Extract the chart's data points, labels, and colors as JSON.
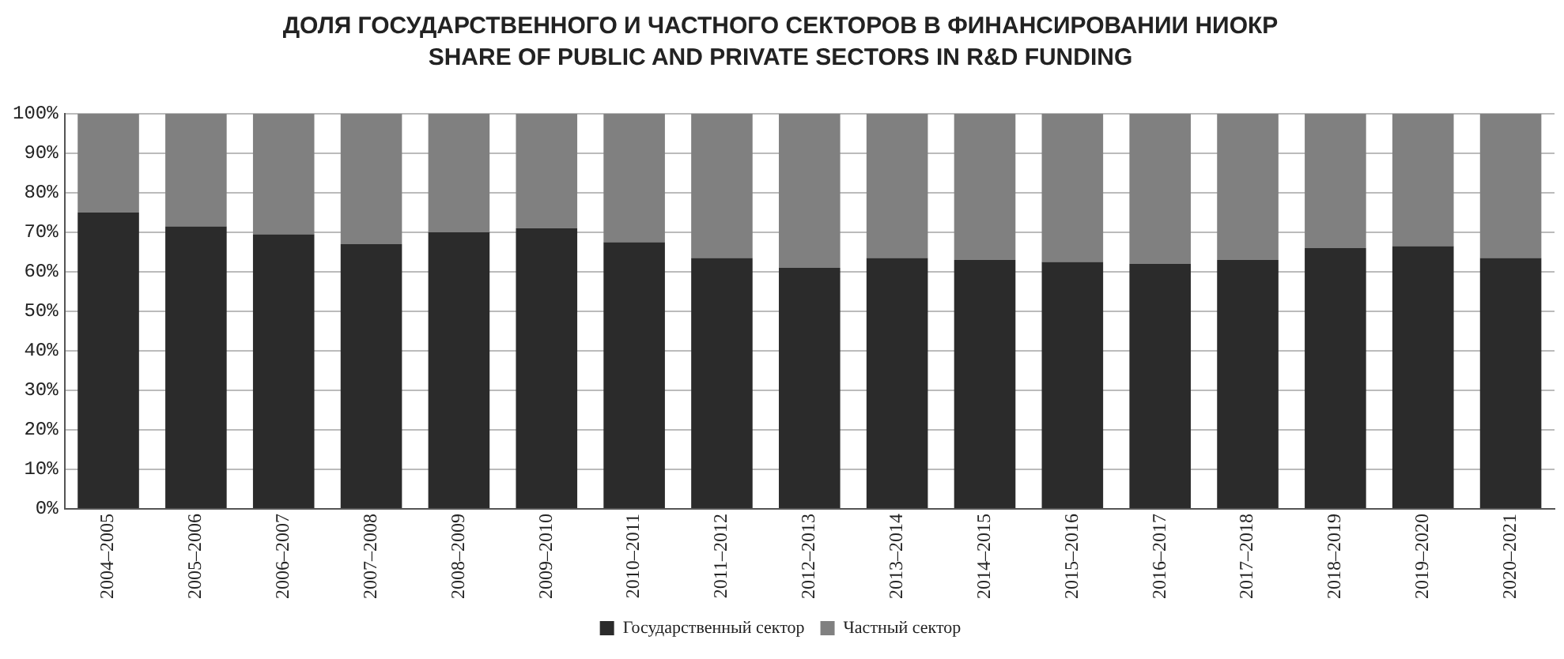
{
  "chart_data": {
    "type": "bar",
    "title": "ДОЛЯ ГОСУДАРСТВЕННОГО И ЧАСТНОГО СЕКТОРОВ В ФИНАНСИРОВАНИИ НИОКР",
    "subtitle": "SHARE OF PUBLIC AND PRIVATE SECTORS IN R&D FUNDING",
    "categories": [
      "2004–2005",
      "2005–2006",
      "2006–2007",
      "2007–2008",
      "2008–2009",
      "2009–2010",
      "2010–2011",
      "2011–2012",
      "2012–2013",
      "2013–2014",
      "2014–2015",
      "2015–2016",
      "2016–2017",
      "2017–2018",
      "2018–2019",
      "2019–2020",
      "2020–2021"
    ],
    "series": [
      {
        "name": "Государственный сектор",
        "color": "#2b2b2b",
        "values": [
          75,
          71.5,
          69.5,
          67,
          70,
          71,
          67.5,
          63.5,
          61,
          63.5,
          63,
          62.5,
          62,
          63,
          66,
          66.5,
          63.5
        ]
      },
      {
        "name": "Частный сектор",
        "color": "#808080",
        "values": [
          25,
          28.5,
          30.5,
          33,
          30,
          29,
          32.5,
          36.5,
          39,
          36.5,
          37,
          37.5,
          38,
          37,
          34,
          33.5,
          36.5
        ]
      }
    ],
    "stacked": true,
    "ylim": [
      0,
      100
    ],
    "yticks": [
      {
        "value": 0,
        "label": "0%"
      },
      {
        "value": 10,
        "label": "10%"
      },
      {
        "value": 20,
        "label": "20%"
      },
      {
        "value": 30,
        "label": "30%"
      },
      {
        "value": 40,
        "label": "40%"
      },
      {
        "value": 50,
        "label": "50%"
      },
      {
        "value": 60,
        "label": "60%"
      },
      {
        "value": 70,
        "label": "70%"
      },
      {
        "value": 80,
        "label": "80%"
      },
      {
        "value": 90,
        "label": "90%"
      },
      {
        "value": 100,
        "label": "100%"
      }
    ],
    "grid": "y",
    "legend": "bottom"
  }
}
